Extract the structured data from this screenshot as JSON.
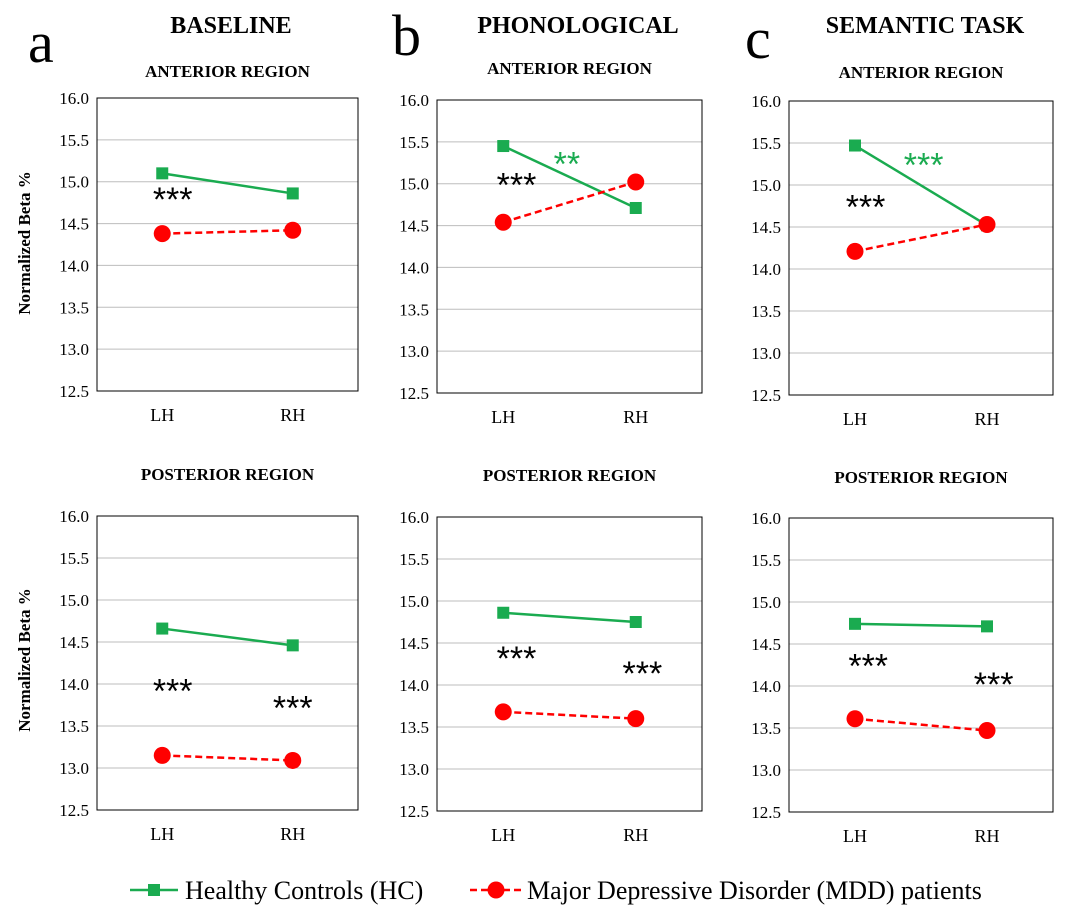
{
  "columns": [
    {
      "letter": "a",
      "heading": "BASELINE"
    },
    {
      "letter": "b",
      "heading": "PHONOLOGICAL"
    },
    {
      "letter": "c",
      "heading": "SEMANTIC TASK"
    }
  ],
  "rows": [
    {
      "ylabel": "Normalized  Beta %"
    },
    {
      "ylabel": "Normalized  Beta %"
    }
  ],
  "colors": {
    "hc": "#1aab50",
    "mdd": "#ff0000",
    "black": "#000000"
  },
  "legend": {
    "hc": "Healthy Controls (HC)",
    "mdd": "Major Depressive Disorder (MDD) patients"
  },
  "chart_data": [
    {
      "type": "line",
      "title": "ANTERIOR REGION",
      "categories": [
        "LH",
        "RH"
      ],
      "ylim": [
        12.5,
        16.0
      ],
      "ticks": [
        "12.5",
        "13.0",
        "13.5",
        "14.0",
        "14.5",
        "15.0",
        "15.5",
        "16.0"
      ],
      "grid": true,
      "series": [
        {
          "name": "Healthy Controls (HC)",
          "values": [
            15.1,
            14.86
          ]
        },
        {
          "name": "Major Depressive Disorder (MDD) patients",
          "values": [
            14.38,
            14.42
          ]
        }
      ],
      "annotations": [
        {
          "text": "***",
          "color": "black",
          "at": [
            0.08,
            14.65
          ]
        }
      ]
    },
    {
      "type": "line",
      "title": "ANTERIOR REGION",
      "categories": [
        "LH",
        "RH"
      ],
      "ylim": [
        12.5,
        16.0
      ],
      "ticks": [
        "12.5",
        "13.0",
        "13.5",
        "14.0",
        "14.5",
        "15.0",
        "15.5",
        "16.0"
      ],
      "grid": true,
      "series": [
        {
          "name": "Healthy Controls (HC)",
          "values": [
            15.45,
            14.71
          ]
        },
        {
          "name": "Major Depressive Disorder (MDD) patients",
          "values": [
            14.54,
            15.02
          ]
        }
      ],
      "annotations": [
        {
          "text": "***",
          "color": "black",
          "at": [
            0.1,
            14.85
          ]
        },
        {
          "text": "**",
          "color": "hc",
          "at": [
            0.48,
            15.1
          ]
        }
      ]
    },
    {
      "type": "line",
      "title": "ANTERIOR REGION",
      "categories": [
        "LH",
        "RH"
      ],
      "ylim": [
        12.5,
        16.0
      ],
      "ticks": [
        "12.5",
        "13.0",
        "13.5",
        "14.0",
        "14.5",
        "15.0",
        "15.5",
        "16.0"
      ],
      "grid": true,
      "series": [
        {
          "name": "Healthy Controls (HC)",
          "values": [
            15.47,
            14.52
          ]
        },
        {
          "name": "Major Depressive Disorder (MDD) patients",
          "values": [
            14.21,
            14.53
          ]
        }
      ],
      "annotations": [
        {
          "text": "***",
          "color": "black",
          "at": [
            0.08,
            14.6
          ]
        },
        {
          "text": "***",
          "color": "hc",
          "at": [
            0.52,
            15.1
          ]
        }
      ]
    },
    {
      "type": "line",
      "title": "POSTERIOR REGION",
      "categories": [
        "LH",
        "RH"
      ],
      "ylim": [
        12.5,
        16.0
      ],
      "ticks": [
        "12.5",
        "13.0",
        "13.5",
        "14.0",
        "14.5",
        "15.0",
        "15.5",
        "16.0"
      ],
      "grid": true,
      "series": [
        {
          "name": "Healthy Controls (HC)",
          "values": [
            14.66,
            14.46
          ]
        },
        {
          "name": "Major Depressive Disorder (MDD) patients",
          "values": [
            13.15,
            13.09
          ]
        }
      ],
      "annotations": [
        {
          "text": "***",
          "color": "black",
          "at": [
            0.08,
            13.78
          ]
        },
        {
          "text": "***",
          "color": "black",
          "at": [
            1.0,
            13.58
          ]
        }
      ]
    },
    {
      "type": "line",
      "title": "POSTERIOR REGION",
      "categories": [
        "LH",
        "RH"
      ],
      "ylim": [
        12.5,
        16.0
      ],
      "ticks": [
        "12.5",
        "13.0",
        "13.5",
        "14.0",
        "14.5",
        "15.0",
        "15.5",
        "16.0"
      ],
      "grid": true,
      "series": [
        {
          "name": "Healthy Controls (HC)",
          "values": [
            14.86,
            14.75
          ]
        },
        {
          "name": "Major Depressive Disorder (MDD) patients",
          "values": [
            13.68,
            13.6
          ]
        }
      ],
      "annotations": [
        {
          "text": "***",
          "color": "black",
          "at": [
            0.1,
            14.18
          ]
        },
        {
          "text": "***",
          "color": "black",
          "at": [
            1.05,
            14.0
          ]
        }
      ]
    },
    {
      "type": "line",
      "title": "POSTERIOR REGION",
      "categories": [
        "LH",
        "RH"
      ],
      "ylim": [
        12.5,
        16.0
      ],
      "ticks": [
        "12.5",
        "13.0",
        "13.5",
        "14.0",
        "14.5",
        "15.0",
        "15.5",
        "16.0"
      ],
      "grid": true,
      "series": [
        {
          "name": "Healthy Controls (HC)",
          "values": [
            14.74,
            14.71
          ]
        },
        {
          "name": "Major Depressive Disorder (MDD) patients",
          "values": [
            13.61,
            13.47
          ]
        }
      ],
      "annotations": [
        {
          "text": "***",
          "color": "black",
          "at": [
            0.1,
            14.1
          ]
        },
        {
          "text": "***",
          "color": "black",
          "at": [
            1.05,
            13.88
          ]
        }
      ]
    }
  ]
}
